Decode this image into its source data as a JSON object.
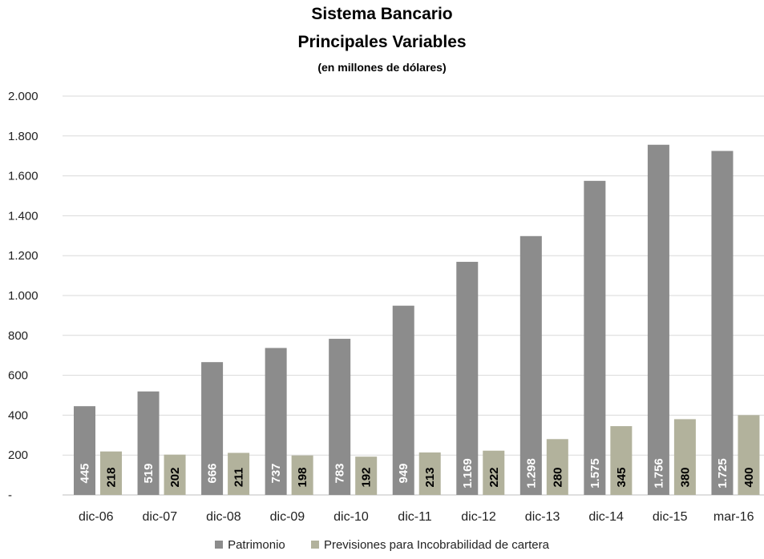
{
  "chart_data": {
    "type": "bar",
    "title": "Sistema Bancario",
    "subtitle": "Principales Variables",
    "units": "(en millones de dólares)",
    "categories": [
      "dic-06",
      "dic-07",
      "dic-08",
      "dic-09",
      "dic-10",
      "dic-11",
      "dic-12",
      "dic-13",
      "dic-14",
      "dic-15",
      "mar-16"
    ],
    "series": [
      {
        "name": "Patrimonio",
        "color": "#8c8c8c",
        "values": [
          445,
          519,
          666,
          737,
          783,
          949,
          1169,
          1298,
          1575,
          1756,
          1725
        ],
        "labels": [
          "445",
          "519",
          "666",
          "737",
          "783",
          "949",
          "1.169",
          "1.298",
          "1.575",
          "1.756",
          "1.725"
        ],
        "label_color": "#ffffff"
      },
      {
        "name": "Previsiones para Incobrabilidad de cartera",
        "color": "#b2b29c",
        "values": [
          218,
          202,
          211,
          198,
          192,
          213,
          222,
          280,
          345,
          380,
          400
        ],
        "labels": [
          "218",
          "202",
          "211",
          "198",
          "192",
          "213",
          "222",
          "280",
          "345",
          "380",
          "400"
        ],
        "label_color": "#000000"
      }
    ],
    "ylim": [
      0,
      2000
    ],
    "yticks": [
      0,
      200,
      400,
      600,
      800,
      1000,
      1200,
      1400,
      1600,
      1800,
      2000
    ],
    "ytick_labels": [
      "-",
      "200",
      "400",
      "600",
      "800",
      "1.000",
      "1.200",
      "1.400",
      "1.600",
      "1.800",
      "2.000"
    ],
    "grid": true,
    "legend_position": "bottom"
  }
}
